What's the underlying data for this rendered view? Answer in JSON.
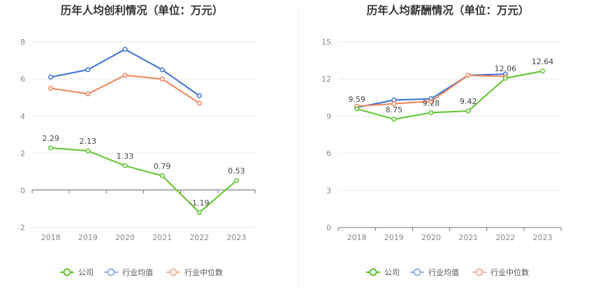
{
  "colors": {
    "company": "#5cc42a",
    "industry_avg": "#3b6fd6",
    "industry_median": "#f0845a",
    "legend_avg": "#8fb0ea",
    "legend_median": "#f5b39a",
    "grid": "#e6e9ef",
    "divider": "#eeeeee"
  },
  "legend": {
    "company": "公司",
    "industry_avg": "行业均值",
    "industry_median": "行业中位数"
  },
  "chart_data": [
    {
      "type": "line",
      "title": "历年人均创利情况（单位：万元）",
      "categories": [
        "2018",
        "2019",
        "2020",
        "2021",
        "2022",
        "2023"
      ],
      "yticks": [
        "-2",
        "0",
        "2",
        "4",
        "6",
        "8"
      ],
      "ylim": [
        -2,
        8
      ],
      "grid": true,
      "legend_position": "bottom",
      "series": [
        {
          "key": "company",
          "name": "公司",
          "values": [
            2.29,
            2.13,
            1.33,
            0.79,
            -1.19,
            0.53
          ],
          "labels": [
            "2.29",
            "2.13",
            "1.33",
            "0.79",
            "-1.19",
            "0.53"
          ]
        },
        {
          "key": "industry_avg",
          "name": "行业均值",
          "values": [
            6.1,
            6.5,
            7.6,
            6.5,
            5.1,
            null
          ]
        },
        {
          "key": "industry_median",
          "name": "行业中位数",
          "values": [
            5.5,
            5.2,
            6.2,
            6.0,
            4.7,
            null
          ]
        }
      ]
    },
    {
      "type": "line",
      "title": "历年人均薪酬情况（单位：万元）",
      "categories": [
        "2018",
        "2019",
        "2020",
        "2021",
        "2022",
        "2023"
      ],
      "yticks": [
        "0",
        "3",
        "6",
        "9",
        "12",
        "15"
      ],
      "ylim": [
        0,
        15
      ],
      "grid": true,
      "legend_position": "bottom",
      "series": [
        {
          "key": "company",
          "name": "公司",
          "values": [
            9.59,
            8.75,
            9.28,
            9.42,
            12.06,
            12.64
          ],
          "labels": [
            "9.59",
            "8.75",
            "9.28",
            "9.42",
            "12.06",
            "12.64"
          ]
        },
        {
          "key": "industry_avg",
          "name": "行业均值",
          "values": [
            9.7,
            10.3,
            10.4,
            12.3,
            12.4,
            null
          ]
        },
        {
          "key": "industry_median",
          "name": "行业中位数",
          "values": [
            9.8,
            10.0,
            10.2,
            12.3,
            12.2,
            null
          ]
        }
      ]
    }
  ]
}
